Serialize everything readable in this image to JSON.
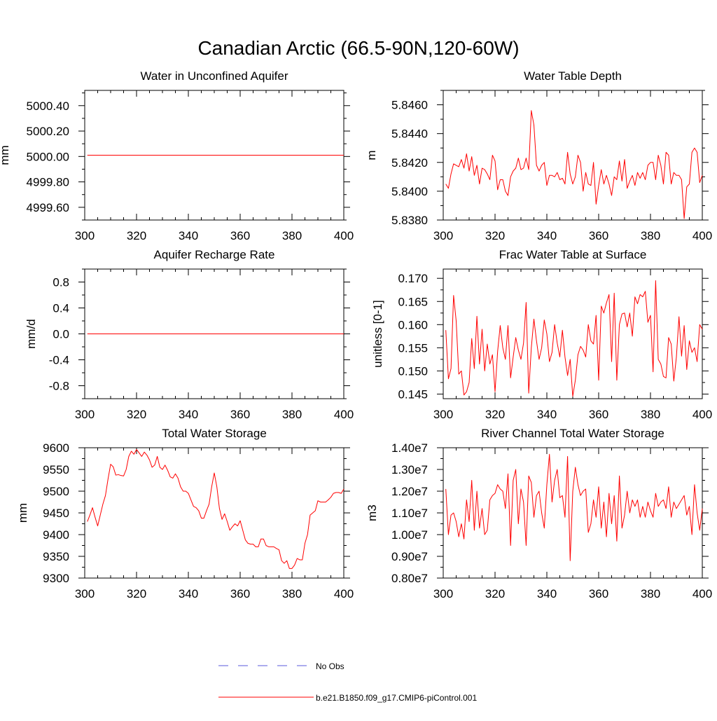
{
  "figure": {
    "title": "Canadian Arctic (66.5-90N,120-60W)"
  },
  "colors": {
    "series": "#ff0000",
    "obs": "#5a5adc",
    "axis": "#000000"
  },
  "legend": {
    "obs_label": "No Obs",
    "model_label": "b.e21.B1850.f09_g17.CMIP6-piControl.001"
  },
  "chart_data": [
    {
      "type": "line",
      "title": "Water in Unconfined Aquifer",
      "ylabel": "mm",
      "xlim": [
        300,
        400
      ],
      "xticks": [
        300,
        320,
        340,
        360,
        380,
        400
      ],
      "ylim": [
        4999.5,
        5000.52
      ],
      "yticks": [
        4999.6,
        4999.8,
        5000.0,
        5000.2,
        5000.4
      ],
      "yticklabels": [
        "4999.60",
        "4999.80",
        "5000.00",
        "5000.20",
        "5000.40"
      ],
      "x_start": 301,
      "series": [
        {
          "name": "b.e21.B1850.f09_g17.CMIP6-piControl.001",
          "values": [
            5000.01,
            5000.01,
            5000.01,
            5000.01,
            5000.01,
            5000.01,
            5000.01,
            5000.01,
            5000.01,
            5000.01,
            5000.01,
            5000.01,
            5000.01,
            5000.01,
            5000.01,
            5000.01,
            5000.01,
            5000.01,
            5000.01,
            5000.01,
            5000.01,
            5000.01,
            5000.01,
            5000.01,
            5000.01,
            5000.01,
            5000.01,
            5000.01,
            5000.01,
            5000.01,
            5000.01,
            5000.01,
            5000.01,
            5000.01,
            5000.01,
            5000.01,
            5000.01,
            5000.01,
            5000.01,
            5000.01,
            5000.01,
            5000.01,
            5000.01,
            5000.01,
            5000.01,
            5000.01,
            5000.01,
            5000.01,
            5000.01,
            5000.01,
            5000.01,
            5000.01,
            5000.01,
            5000.01,
            5000.01,
            5000.01,
            5000.01,
            5000.01,
            5000.01,
            5000.01,
            5000.01,
            5000.01,
            5000.01,
            5000.01,
            5000.01,
            5000.01,
            5000.01,
            5000.01,
            5000.01,
            5000.01,
            5000.01,
            5000.01,
            5000.01,
            5000.01,
            5000.01,
            5000.01,
            5000.01,
            5000.01,
            5000.01,
            5000.01,
            5000.01,
            5000.01,
            5000.01,
            5000.01,
            5000.01,
            5000.01,
            5000.01,
            5000.01,
            5000.01,
            5000.01,
            5000.01,
            5000.01,
            5000.01,
            5000.01,
            5000.01,
            5000.01,
            5000.01,
            5000.01,
            5000.01,
            5000.01
          ]
        }
      ]
    },
    {
      "type": "line",
      "title": "Water Table Depth",
      "ylabel": "m",
      "xlim": [
        300,
        400
      ],
      "xticks": [
        300,
        320,
        340,
        360,
        380,
        400
      ],
      "ylim": [
        5.838,
        5.847
      ],
      "yticks": [
        5.838,
        5.84,
        5.842,
        5.844,
        5.846
      ],
      "yticklabels": [
        "5.8380",
        "5.8400",
        "5.8420",
        "5.8440",
        "5.8460"
      ],
      "x_start": 301,
      "series": [
        {
          "name": "b.e21.B1850.f09_g17.CMIP6-piControl.001",
          "values": [
            5.8405,
            5.8402,
            5.8412,
            5.8419,
            5.8418,
            5.8417,
            5.8422,
            5.8416,
            5.8426,
            5.8414,
            5.8424,
            5.8411,
            5.8418,
            5.8405,
            5.8416,
            5.8415,
            5.8412,
            5.8408,
            5.8425,
            5.8421,
            5.8401,
            5.8408,
            5.8408,
            5.84,
            5.8397,
            5.841,
            5.8414,
            5.8416,
            5.8423,
            5.8415,
            5.8416,
            5.8423,
            5.8415,
            5.8456,
            5.8446,
            5.8418,
            5.8414,
            5.8418,
            5.842,
            5.8404,
            5.8411,
            5.8411,
            5.841,
            5.8413,
            5.8408,
            5.8409,
            5.8405,
            5.8427,
            5.8412,
            5.8405,
            5.841,
            5.8425,
            5.842,
            5.84,
            5.8413,
            5.8405,
            5.8404,
            5.842,
            5.8391,
            5.8404,
            5.8415,
            5.8405,
            5.8411,
            5.8405,
            5.8397,
            5.841,
            5.8408,
            5.8421,
            5.8407,
            5.8422,
            5.8402,
            5.8407,
            5.8411,
            5.8404,
            5.8413,
            5.8409,
            5.8413,
            5.8408,
            5.8418,
            5.842,
            5.842,
            5.8408,
            5.8425,
            5.8418,
            5.8405,
            5.8427,
            5.8425,
            5.8405,
            5.8413,
            5.8411,
            5.8411,
            5.8408,
            5.8381,
            5.8403,
            5.8405,
            5.8427,
            5.843,
            5.8427,
            5.8406,
            5.8411
          ]
        }
      ]
    },
    {
      "type": "line",
      "title": "Aquifer Recharge Rate",
      "ylabel": "mm/d",
      "xlim": [
        300,
        400
      ],
      "xticks": [
        300,
        320,
        340,
        360,
        380,
        400
      ],
      "ylim": [
        -1.0,
        1.0
      ],
      "yticks": [
        -0.8,
        -0.4,
        0.0,
        0.4,
        0.8
      ],
      "yticklabels": [
        "-0.8",
        "-0.4",
        "0.0",
        "0.4",
        "0.8"
      ],
      "x_start": 301,
      "series": [
        {
          "name": "b.e21.B1850.f09_g17.CMIP6-piControl.001",
          "values": [
            0,
            0,
            0,
            0,
            0,
            0,
            0,
            0,
            0,
            0,
            0,
            0,
            0,
            0,
            0,
            0,
            0,
            0,
            0,
            0,
            0,
            0,
            0,
            0,
            0,
            0,
            0,
            0,
            0,
            0,
            0,
            0,
            0,
            0,
            0,
            0,
            0,
            0,
            0,
            0,
            0,
            0,
            0,
            0,
            0,
            0,
            0,
            0,
            0,
            0,
            0,
            0,
            0,
            0,
            0,
            0,
            0,
            0,
            0,
            0,
            0,
            0,
            0,
            0,
            0,
            0,
            0,
            0,
            0,
            0,
            0,
            0,
            0,
            0,
            0,
            0,
            0,
            0,
            0,
            0,
            0,
            0,
            0,
            0,
            0,
            0,
            0,
            0,
            0,
            0,
            0,
            0,
            0,
            0,
            0,
            0,
            0,
            0,
            0,
            0
          ]
        }
      ]
    },
    {
      "type": "line",
      "title": "Frac Water Table at Surface",
      "ylabel": "unitless [0-1]",
      "xlim": [
        300,
        400
      ],
      "xticks": [
        300,
        320,
        340,
        360,
        380,
        400
      ],
      "ylim": [
        0.144,
        0.172
      ],
      "yticks": [
        0.145,
        0.15,
        0.155,
        0.16,
        0.165,
        0.17
      ],
      "yticklabels": [
        "0.145",
        "0.150",
        "0.155",
        "0.160",
        "0.165",
        "0.170"
      ],
      "x_start": 301,
      "series": [
        {
          "name": "b.e21.B1850.f09_g17.CMIP6-piControl.001",
          "values": [
            0.1588,
            0.1483,
            0.1505,
            0.1663,
            0.1608,
            0.1493,
            0.15,
            0.1448,
            0.1455,
            0.1475,
            0.157,
            0.1505,
            0.1618,
            0.1515,
            0.159,
            0.15,
            0.1558,
            0.1515,
            0.1535,
            0.1455,
            0.1542,
            0.1598,
            0.155,
            0.1525,
            0.1598,
            0.1485,
            0.153,
            0.1572,
            0.1545,
            0.1525,
            0.156,
            0.1648,
            0.1452,
            0.155,
            0.1612,
            0.1565,
            0.1525,
            0.155,
            0.161,
            0.158,
            0.152,
            0.154,
            0.16,
            0.156,
            0.153,
            0.1588,
            0.153,
            0.149,
            0.1525,
            0.1445,
            0.148,
            0.1535,
            0.1553,
            0.1545,
            0.153,
            0.16,
            0.1565,
            0.1558,
            0.162,
            0.148,
            0.164,
            0.1625,
            0.1647,
            0.1665,
            0.152,
            0.1668,
            0.148,
            0.16,
            0.1623,
            0.1625,
            0.1595,
            0.1625,
            0.1575,
            0.166,
            0.1645,
            0.1665,
            0.166,
            0.1672,
            0.1605,
            0.162,
            0.1498,
            0.1695,
            0.1525,
            0.1515,
            0.1488,
            0.1485,
            0.1572,
            0.1558,
            0.1478,
            0.153,
            0.1617,
            0.1532,
            0.1598,
            0.1503,
            0.1565,
            0.154,
            0.155,
            0.152,
            0.16,
            0.159
          ]
        }
      ]
    },
    {
      "type": "line",
      "title": "Total Water Storage",
      "ylabel": "mm",
      "xlim": [
        300,
        400
      ],
      "xticks": [
        300,
        320,
        340,
        360,
        380,
        400
      ],
      "ylim": [
        9300,
        9600
      ],
      "yticks": [
        9300,
        9350,
        9400,
        9450,
        9500,
        9550,
        9600
      ],
      "yticklabels": [
        "9300",
        "9350",
        "9400",
        "9450",
        "9500",
        "9550",
        "9600"
      ],
      "x_start": 301,
      "series": [
        {
          "name": "b.e21.B1850.f09_g17.CMIP6-piControl.001",
          "values": [
            9430,
            9445,
            9462,
            9440,
            9420,
            9445,
            9470,
            9490,
            9528,
            9562,
            9556,
            9537,
            9538,
            9536,
            9535,
            9550,
            9580,
            9592,
            9585,
            9596,
            9588,
            9580,
            9590,
            9583,
            9572,
            9555,
            9560,
            9580,
            9555,
            9550,
            9560,
            9548,
            9533,
            9530,
            9540,
            9530,
            9510,
            9500,
            9500,
            9495,
            9480,
            9465,
            9462,
            9455,
            9438,
            9438,
            9455,
            9470,
            9510,
            9542,
            9510,
            9460,
            9435,
            9448,
            9430,
            9410,
            9418,
            9425,
            9420,
            9432,
            9410,
            9388,
            9380,
            9378,
            9378,
            9372,
            9372,
            9390,
            9390,
            9375,
            9372,
            9372,
            9372,
            9368,
            9365,
            9340,
            9334,
            9340,
            9322,
            9322,
            9330,
            9345,
            9342,
            9342,
            9380,
            9400,
            9445,
            9450,
            9455,
            9478,
            9475,
            9475,
            9475,
            9480,
            9486,
            9495,
            9497,
            9497,
            9495,
            9505
          ]
        }
      ]
    },
    {
      "type": "line",
      "title": "River Channel Total Water Storage",
      "ylabel": "m3",
      "xlim": [
        300,
        400
      ],
      "xticks": [
        300,
        320,
        340,
        360,
        380,
        400
      ],
      "ylim": [
        8000000,
        14000000
      ],
      "yticks": [
        8000000,
        9000000,
        10000000,
        11000000,
        12000000,
        13000000,
        14000000
      ],
      "yticklabels": [
        "0.80e7",
        "0.90e7",
        "1.00e7",
        "1.10e7",
        "1.20e7",
        "1.30e7",
        "1.40e7"
      ],
      "x_start": 301,
      "series": [
        {
          "name": "b.e21.B1850.f09_g17.CMIP6-piControl.001",
          "values": [
            12100000,
            10000000,
            10900000,
            11000000,
            10600000,
            9900000,
            10500000,
            9800000,
            11600000,
            10600000,
            12500000,
            10200000,
            12000000,
            10300000,
            11200000,
            10000000,
            10200000,
            11600000,
            11800000,
            11900000,
            12300000,
            12100000,
            12000000,
            11200000,
            12800000,
            9500000,
            12500000,
            13000000,
            10500000,
            12100000,
            11500000,
            9500000,
            12700000,
            12400000,
            10800000,
            11800000,
            12000000,
            11000000,
            10300000,
            12300000,
            13700000,
            11500000,
            12500000,
            13000000,
            11700000,
            11800000,
            10800000,
            13600000,
            8800000,
            12000000,
            13100000,
            12300000,
            11800000,
            12000000,
            12100000,
            10100000,
            10500000,
            11600000,
            10800000,
            12200000,
            10300000,
            11500000,
            9900000,
            11900000,
            10500000,
            11800000,
            9700000,
            12700000,
            10300000,
            10900000,
            12000000,
            11000000,
            11600000,
            11300000,
            11600000,
            10800000,
            11300000,
            10800000,
            11500000,
            11100000,
            10800000,
            11900000,
            11300000,
            11500000,
            11600000,
            11200000,
            12200000,
            10800000,
            11500000,
            11200000,
            11400000,
            11600000,
            11800000,
            10900000,
            11300000,
            10000000,
            12300000,
            11000000,
            10200000,
            11200000
          ]
        }
      ]
    }
  ]
}
